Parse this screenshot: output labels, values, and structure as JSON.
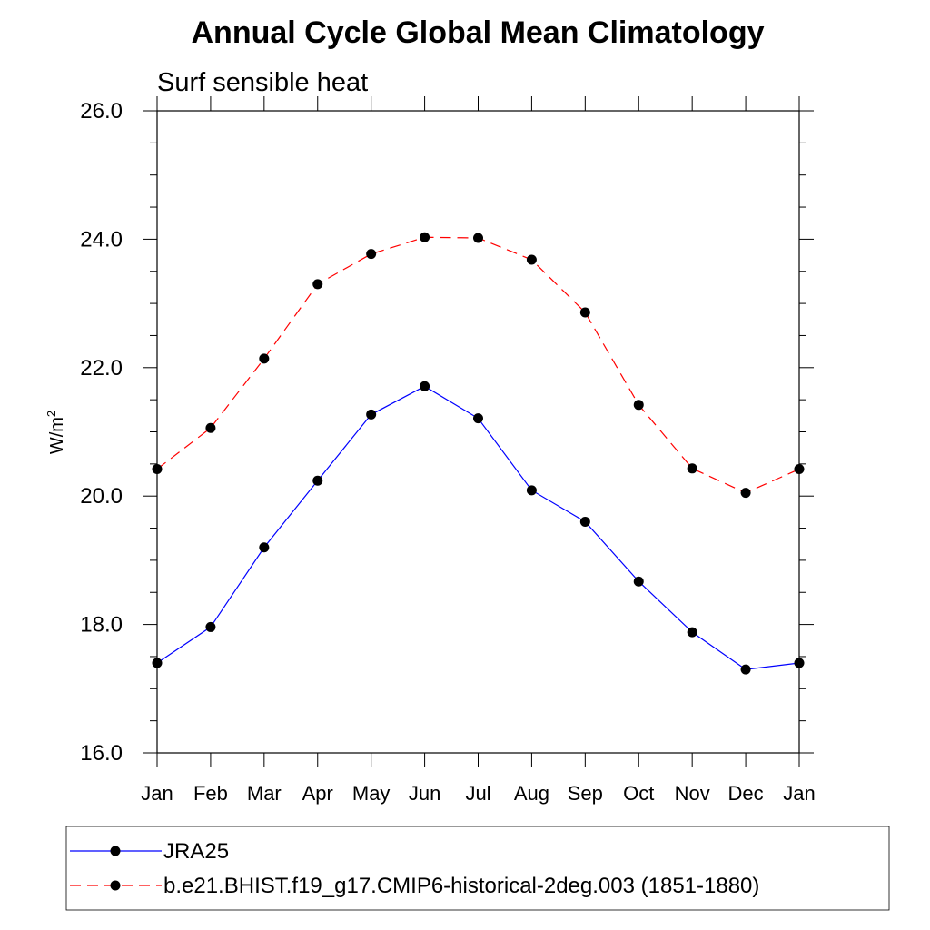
{
  "chart_data": {
    "type": "line",
    "title": "Annual Cycle Global Mean Climatology",
    "subtitle": "Surf sensible heat",
    "ylabel": "W/m",
    "ylabel_superscript": "2",
    "categories": [
      "Jan",
      "Feb",
      "Mar",
      "Apr",
      "May",
      "Jun",
      "Jul",
      "Aug",
      "Sep",
      "Oct",
      "Nov",
      "Dec",
      "Jan"
    ],
    "ylim": [
      16.0,
      26.0
    ],
    "yticks": [
      "16.0",
      "18.0",
      "20.0",
      "22.0",
      "24.0",
      "26.0"
    ],
    "grid": false,
    "legend_position": "bottom",
    "series": [
      {
        "name": "JRA25",
        "color": "#0000ff",
        "line_style": "solid",
        "marker": "filled-circle",
        "values": [
          17.4,
          17.96,
          19.2,
          20.24,
          21.27,
          21.71,
          21.21,
          20.09,
          19.6,
          18.67,
          17.88,
          17.3,
          17.4
        ]
      },
      {
        "name": "b.e21.BHIST.f19_g17.CMIP6-historical-2deg.003 (1851-1880)",
        "color": "#ff0000",
        "line_style": "dashed",
        "marker": "filled-circle",
        "values": [
          20.42,
          21.06,
          22.14,
          23.3,
          23.77,
          24.03,
          24.02,
          23.68,
          22.86,
          21.42,
          20.43,
          20.05,
          20.42
        ]
      }
    ]
  }
}
